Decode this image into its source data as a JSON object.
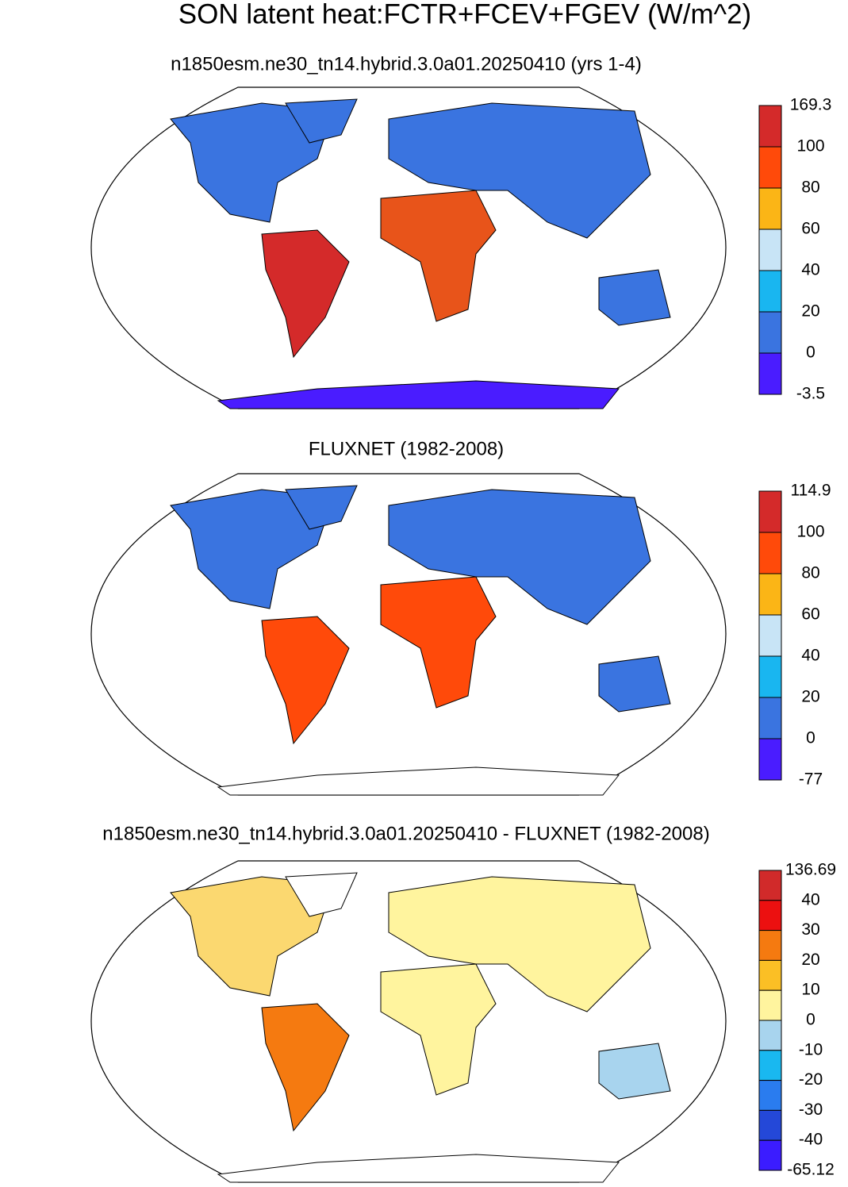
{
  "title": "SON latent heat:FCTR+FCEV+FGEV (W/m^2)",
  "panels": [
    {
      "subtitle": "n1850esm.ne30_tn14.hybrid.3.0a01.20250410 (yrs 1-4)",
      "colorbar": {
        "labels": [
          "169.3",
          "100",
          "80",
          "60",
          "40",
          "20",
          "0",
          "-3.5"
        ],
        "colors": [
          "#d42a2a",
          "#ff4a0a",
          "#fbb516",
          "#c8e4f6",
          "#19b6f0",
          "#3a74e0",
          "#4a1cff"
        ]
      }
    },
    {
      "subtitle": "FLUXNET (1982-2008)",
      "colorbar": {
        "labels": [
          "114.9",
          "100",
          "80",
          "60",
          "40",
          "20",
          "0",
          "-77"
        ],
        "colors": [
          "#d42a2a",
          "#ff4a0a",
          "#fbb516",
          "#c8e4f6",
          "#19b6f0",
          "#3a74e0",
          "#4a1cff"
        ]
      }
    },
    {
      "subtitle": "n1850esm.ne30_tn14.hybrid.3.0a01.20250410 - FLUXNET (1982-2008)",
      "colorbar": {
        "labels": [
          "136.69",
          "40",
          "30",
          "20",
          "10",
          "0",
          "-10",
          "-20",
          "-30",
          "-40",
          "-65.12"
        ],
        "colors": [
          "#d12a2a",
          "#ec1010",
          "#f57a10",
          "#fbbf25",
          "#fff49e",
          "#a8d4ee",
          "#19b8f0",
          "#2a7cef",
          "#2448d8",
          "#3b1cff"
        ]
      }
    }
  ]
}
